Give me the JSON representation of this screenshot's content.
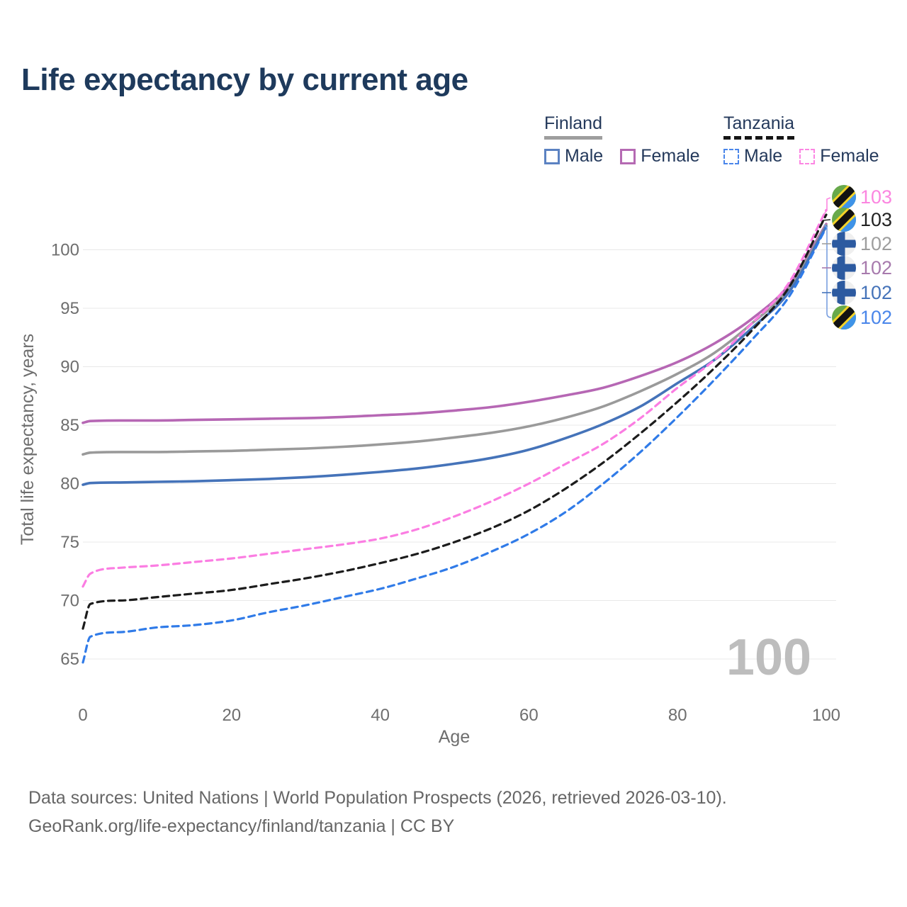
{
  "title": "Life expectancy by current age",
  "legend": {
    "groups": [
      {
        "country": "Finland",
        "line_style": "solid",
        "underline_color": "#9e9e9e",
        "items": [
          {
            "label": "Male",
            "color": "#4573b9"
          },
          {
            "label": "Female",
            "color": "#b56ab3"
          }
        ]
      },
      {
        "country": "Tanzania",
        "line_style": "dashed",
        "underline_color": "#161616",
        "items": [
          {
            "label": "Male",
            "color": "#307be8"
          },
          {
            "label": "Female",
            "color": "#fb7de2"
          }
        ]
      }
    ]
  },
  "axes": {
    "y_label": "Total life expectancy, years",
    "x_label": "Age",
    "y_ticks": [
      65,
      70,
      75,
      80,
      85,
      90,
      95,
      100
    ],
    "x_ticks": [
      0,
      20,
      40,
      60,
      80,
      100
    ],
    "grid_color": "#e8e8e8"
  },
  "watermark": "100",
  "footer": {
    "line1": "Data sources: United Nations | World Population Prospects (2026, retrieved 2026-03-10).",
    "line2": "GeoRank.org/life-expectancy/finland/tanzania | CC BY"
  },
  "chart_data": {
    "type": "line",
    "xlabel": "Age",
    "ylabel": "Total life expectancy, years",
    "x_range": [
      0,
      100
    ],
    "y_range": [
      63.5,
      105
    ],
    "grid": "horizontal-only",
    "legend_position": "top-right",
    "x": [
      0,
      1,
      5,
      10,
      15,
      20,
      25,
      30,
      35,
      40,
      45,
      50,
      55,
      60,
      65,
      70,
      75,
      80,
      85,
      90,
      95,
      100
    ],
    "series": [
      {
        "name": "Finland Female",
        "country": "Finland",
        "sex": "Female",
        "color": "#b667b4",
        "dash": false,
        "values": [
          85.2,
          85.35,
          85.4,
          85.4,
          85.45,
          85.5,
          85.55,
          85.6,
          85.7,
          85.85,
          86.0,
          86.25,
          86.55,
          87.0,
          87.55,
          88.2,
          89.2,
          90.4,
          92.0,
          94.1,
          97.0,
          102.2
        ]
      },
      {
        "name": "Finland Both sexes",
        "country": "Finland",
        "sex": "Both",
        "color": "#9a9a9a",
        "dash": false,
        "values": [
          82.5,
          82.65,
          82.7,
          82.7,
          82.75,
          82.8,
          82.9,
          83.0,
          83.15,
          83.35,
          83.6,
          83.95,
          84.35,
          84.9,
          85.65,
          86.6,
          87.9,
          89.4,
          91.2,
          93.7,
          96.7,
          102.1
        ]
      },
      {
        "name": "Finland Male",
        "country": "Finland",
        "sex": "Male",
        "color": "#4573b9",
        "dash": false,
        "values": [
          79.9,
          80.05,
          80.1,
          80.15,
          80.2,
          80.3,
          80.4,
          80.55,
          80.75,
          81.0,
          81.3,
          81.7,
          82.2,
          82.9,
          83.9,
          85.1,
          86.6,
          88.6,
          90.6,
          93.3,
          96.4,
          102.0
        ]
      },
      {
        "name": "Tanzania Female",
        "country": "Tanzania",
        "sex": "Female",
        "color": "#fb7de2",
        "dash": true,
        "values": [
          71.2,
          72.3,
          72.8,
          73.0,
          73.3,
          73.6,
          74.0,
          74.4,
          74.8,
          75.3,
          76.1,
          77.2,
          78.5,
          80.0,
          81.7,
          83.4,
          85.6,
          88.2,
          90.6,
          93.7,
          97.2,
          103.4
        ]
      },
      {
        "name": "Tanzania Both sexes",
        "country": "Tanzania",
        "sex": "Both",
        "color": "#1c1c1c",
        "dash": true,
        "values": [
          67.6,
          69.7,
          70.0,
          70.3,
          70.6,
          70.9,
          71.4,
          71.9,
          72.5,
          73.2,
          74.0,
          75.0,
          76.2,
          77.7,
          79.6,
          81.8,
          84.3,
          87.0,
          89.9,
          93.1,
          96.8,
          103.0
        ]
      },
      {
        "name": "Tanzania Male",
        "country": "Tanzania",
        "sex": "Male",
        "color": "#307be8",
        "dash": true,
        "values": [
          64.7,
          66.9,
          67.3,
          67.7,
          67.9,
          68.3,
          69.0,
          69.6,
          70.3,
          71.0,
          71.9,
          72.9,
          74.2,
          75.7,
          77.6,
          80.0,
          82.7,
          85.7,
          88.9,
          92.3,
          96.0,
          101.9
        ]
      }
    ],
    "end_labels": [
      {
        "value": "103",
        "flag": "tanzania",
        "color": "#fb86e0",
        "series": "Tanzania Female"
      },
      {
        "value": "103",
        "flag": "tanzania",
        "color": "#222222",
        "series": "Tanzania Both sexes"
      },
      {
        "value": "102",
        "flag": "finland",
        "color": "#9e9e9e",
        "series": "Finland Both sexes"
      },
      {
        "value": "102",
        "flag": "finland",
        "color": "#a77aad",
        "series": "Finland Female"
      },
      {
        "value": "102",
        "flag": "finland",
        "color": "#4573b9",
        "series": "Finland Male"
      },
      {
        "value": "102",
        "flag": "tanzania",
        "color": "#4a86ea",
        "series": "Tanzania Male"
      }
    ],
    "flag_colors": {
      "finland_bg": "#efefef",
      "finland_cross": "#2c5aa0",
      "tanzania_green": "#68a94b",
      "tanzania_blue": "#3f93e8",
      "tanzania_yellow": "#f5d327",
      "tanzania_black": "#121212"
    }
  }
}
